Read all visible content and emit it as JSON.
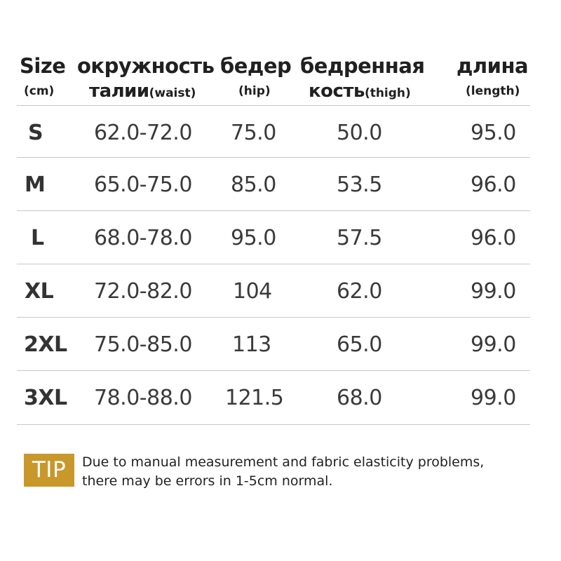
{
  "header": {
    "size": {
      "title": "Size",
      "unit": "(cm)"
    },
    "waist": {
      "title": "окружность",
      "sub_main": "талии",
      "sub_paren": "(waist)"
    },
    "hip": {
      "title": "бедер",
      "sub": "(hip)"
    },
    "thigh": {
      "title": "бедренная",
      "sub_main": "кость",
      "sub_paren": "(thigh)"
    },
    "length": {
      "title": "длина",
      "sub": "(length)"
    }
  },
  "rows": [
    {
      "size": "S",
      "waist": "62.0-72.0",
      "hip": "75.0",
      "thigh": "50.0",
      "length": "95.0"
    },
    {
      "size": "M",
      "waist": "65.0-75.0",
      "hip": "85.0",
      "thigh": "53.5",
      "length": "96.0"
    },
    {
      "size": "L",
      "waist": "68.0-78.0",
      "hip": "95.0",
      "thigh": "57.5",
      "length": "96.0"
    },
    {
      "size": "XL",
      "waist": "72.0-82.0",
      "hip": "104",
      "thigh": "62.0",
      "length": "99.0"
    },
    {
      "size": "2XL",
      "waist": "75.0-85.0",
      "hip": "113",
      "thigh": "65.0",
      "length": "99.0"
    },
    {
      "size": "3XL",
      "waist": "78.0-88.0",
      "hip": "121.5",
      "thigh": "68.0",
      "length": "99.0"
    }
  ],
  "tip": {
    "label": "TIP",
    "line1": "Due to manual measurement and fabric elasticity problems,",
    "line2": "there may be errors in 1-5cm normal.",
    "color": "#c9982b"
  }
}
